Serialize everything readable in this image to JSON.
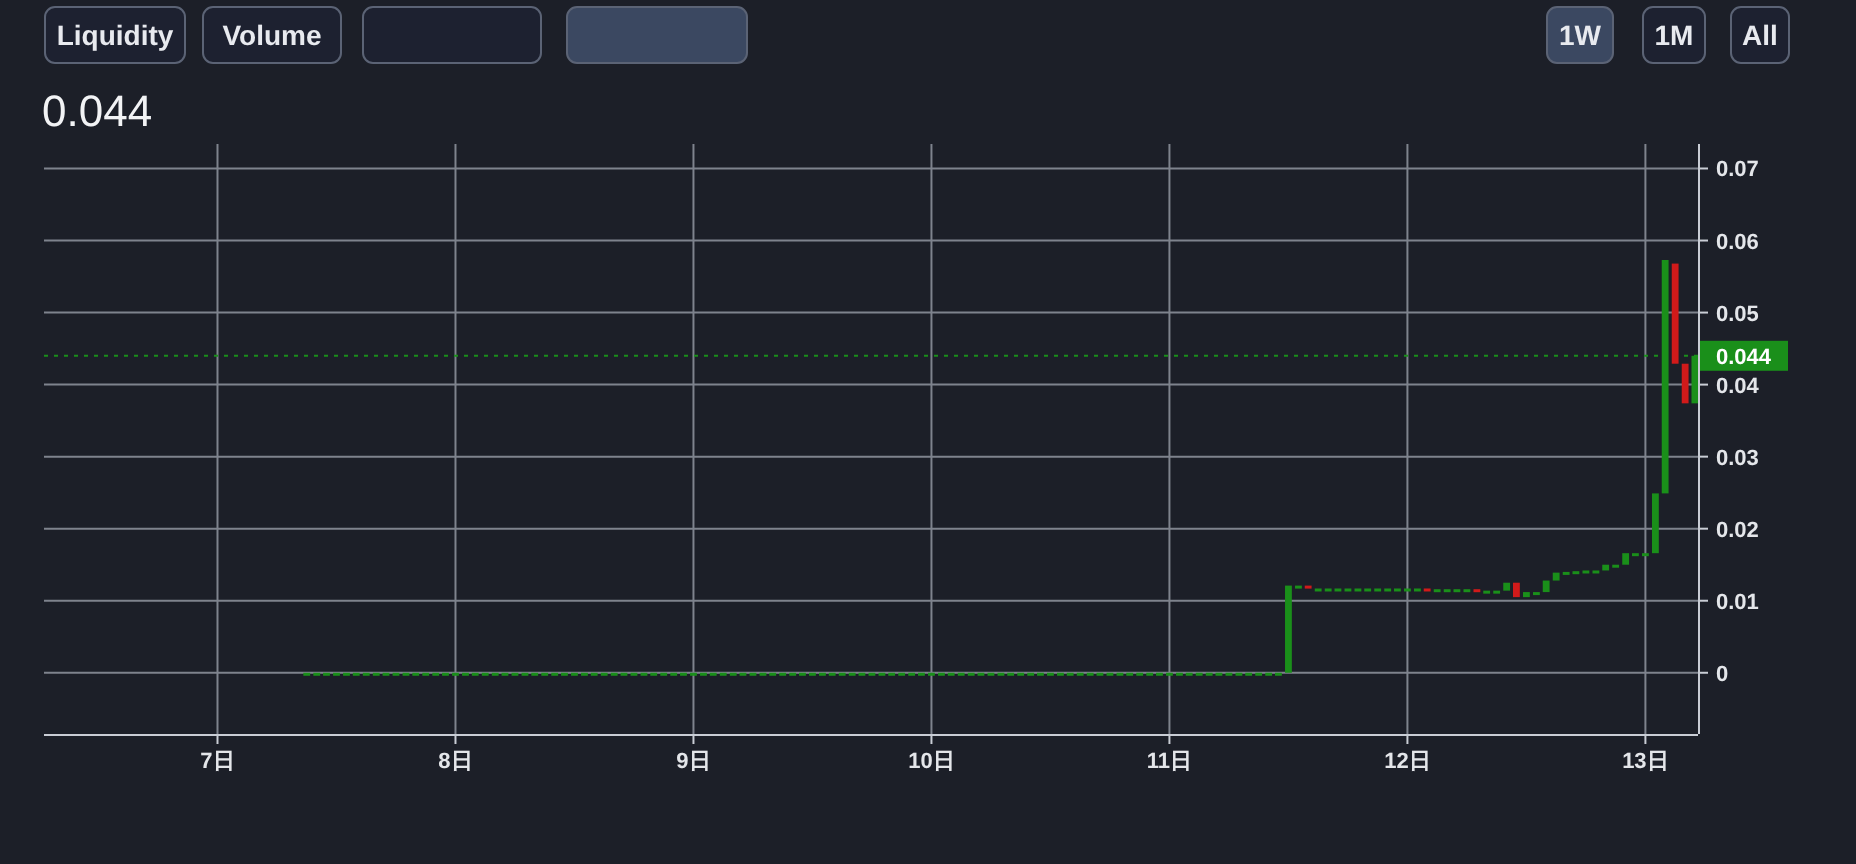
{
  "chart_data": {
    "type": "candlestick",
    "title": "0.044",
    "annotations": [
      "Liquidity",
      "Volume",
      null,
      null,
      "1W",
      "1M",
      "All"
    ],
    "x": [
      7.375,
      7.417,
      7.458,
      7.5,
      7.542,
      7.583,
      7.625,
      7.667,
      7.708,
      7.75,
      7.792,
      7.833,
      7.875,
      7.917,
      7.958,
      8,
      8.042,
      8.083,
      8.125,
      8.167,
      8.208,
      8.25,
      8.292,
      8.333,
      8.375,
      8.417,
      8.458,
      8.5,
      8.542,
      8.583,
      8.625,
      8.667,
      8.708,
      8.75,
      8.792,
      8.833,
      8.875,
      8.917,
      8.958,
      9,
      9.042,
      9.083,
      9.125,
      9.167,
      9.208,
      9.25,
      9.292,
      9.333,
      9.375,
      9.417,
      9.458,
      9.5,
      9.542,
      9.583,
      9.625,
      9.667,
      9.708,
      9.75,
      9.792,
      9.833,
      9.875,
      9.917,
      9.958,
      10,
      10.042,
      10.083,
      10.125,
      10.167,
      10.208,
      10.25,
      10.292,
      10.333,
      10.375,
      10.417,
      10.458,
      10.5,
      10.542,
      10.583,
      10.625,
      10.667,
      10.708,
      10.75,
      10.792,
      10.833,
      10.875,
      10.917,
      10.958,
      11,
      11.042,
      11.083,
      11.125,
      11.167,
      11.208,
      11.25,
      11.292,
      11.333,
      11.375,
      11.417,
      11.458,
      11.5,
      11.542,
      11.583,
      11.625,
      11.667,
      11.708,
      11.75,
      11.792,
      11.833,
      11.875,
      11.917,
      11.958,
      12,
      12.042,
      12.083,
      12.125,
      12.167,
      12.208,
      12.25,
      12.292,
      12.333,
      12.375,
      12.417,
      12.458,
      12.5,
      12.542,
      12.583,
      12.625,
      12.667,
      12.708,
      12.75,
      12.792,
      12.833,
      12.875,
      12.917,
      12.958,
      13,
      13.042,
      13.083,
      13.125,
      13.167,
      13.208
    ],
    "ohlc": [
      [
        0,
        0,
        0,
        0
      ],
      [
        0,
        0,
        0,
        0
      ],
      [
        0,
        0,
        0,
        0
      ],
      [
        0,
        0,
        0,
        0
      ],
      [
        0,
        0,
        0,
        0
      ],
      [
        0,
        0,
        0,
        0
      ],
      [
        0,
        0,
        0,
        0
      ],
      [
        0,
        0,
        0,
        0
      ],
      [
        0,
        0,
        0,
        0
      ],
      [
        0,
        0,
        0,
        0
      ],
      [
        0,
        0,
        0,
        0
      ],
      [
        0,
        0,
        0,
        0
      ],
      [
        0,
        0,
        0,
        0
      ],
      [
        0,
        0,
        0,
        0
      ],
      [
        0,
        0,
        0,
        0
      ],
      [
        0,
        0,
        0,
        0
      ],
      [
        0,
        0,
        0,
        0
      ],
      [
        0,
        0,
        0,
        0
      ],
      [
        0,
        0,
        0,
        0
      ],
      [
        0,
        0,
        0,
        0
      ],
      [
        0,
        0,
        0,
        0
      ],
      [
        0,
        0,
        0,
        0
      ],
      [
        0,
        0,
        0,
        0
      ],
      [
        0,
        0,
        0,
        0
      ],
      [
        0,
        0,
        0,
        0
      ],
      [
        0,
        0,
        0,
        0
      ],
      [
        0,
        0,
        0,
        0
      ],
      [
        0,
        0,
        0,
        0
      ],
      [
        0,
        0,
        0,
        0
      ],
      [
        0,
        0,
        0,
        0
      ],
      [
        0,
        0,
        0,
        0
      ],
      [
        0,
        0,
        0,
        0
      ],
      [
        0,
        0,
        0,
        0
      ],
      [
        0,
        0,
        0,
        0
      ],
      [
        0,
        0,
        0,
        0
      ],
      [
        0,
        0,
        0,
        0
      ],
      [
        0,
        0,
        0,
        0
      ],
      [
        0,
        0,
        0,
        0
      ],
      [
        0,
        0,
        0,
        0
      ],
      [
        0,
        0,
        0,
        0
      ],
      [
        0,
        0,
        0,
        0
      ],
      [
        0,
        0,
        0,
        0
      ],
      [
        0,
        0,
        0,
        0
      ],
      [
        0,
        0,
        0,
        0
      ],
      [
        0,
        0,
        0,
        0
      ],
      [
        0,
        0,
        0,
        0
      ],
      [
        0,
        0,
        0,
        0
      ],
      [
        0,
        0,
        0,
        0
      ],
      [
        0,
        0,
        0,
        0
      ],
      [
        0,
        0,
        0,
        0
      ],
      [
        0,
        0,
        0,
        0
      ],
      [
        0,
        0,
        0,
        0
      ],
      [
        0,
        0,
        0,
        0
      ],
      [
        0,
        0,
        0,
        0
      ],
      [
        0,
        0,
        0,
        0
      ],
      [
        0,
        0,
        0,
        0
      ],
      [
        0,
        0,
        0,
        0
      ],
      [
        0,
        0,
        0,
        0
      ],
      [
        0,
        0,
        0,
        0
      ],
      [
        0,
        0,
        0,
        0
      ],
      [
        0,
        0,
        0,
        0
      ],
      [
        0,
        0,
        0,
        0
      ],
      [
        0,
        0,
        0,
        0
      ],
      [
        0,
        0,
        0,
        0
      ],
      [
        0,
        0,
        0,
        0
      ],
      [
        0,
        0,
        0,
        0
      ],
      [
        0,
        0,
        0,
        0
      ],
      [
        0,
        0,
        0,
        0
      ],
      [
        0,
        0,
        0,
        0
      ],
      [
        0,
        0,
        0,
        0
      ],
      [
        0,
        0,
        0,
        0
      ],
      [
        0,
        0,
        0,
        0
      ],
      [
        0,
        0,
        0,
        0
      ],
      [
        0,
        0,
        0,
        0
      ],
      [
        0,
        0,
        0,
        0
      ],
      [
        0,
        0,
        0,
        0
      ],
      [
        0,
        0,
        0,
        0
      ],
      [
        0,
        0,
        0,
        0
      ],
      [
        0,
        0,
        0,
        0
      ],
      [
        0,
        0,
        0,
        0
      ],
      [
        0,
        0,
        0,
        0
      ],
      [
        0,
        0,
        0,
        0
      ],
      [
        0,
        0,
        0,
        0
      ],
      [
        0,
        0,
        0,
        0
      ],
      [
        0,
        0,
        0,
        0
      ],
      [
        0,
        0,
        0,
        0
      ],
      [
        0,
        0,
        0,
        0
      ],
      [
        0,
        0,
        0,
        0
      ],
      [
        0,
        0,
        0,
        0
      ],
      [
        0,
        0,
        0,
        0
      ],
      [
        0,
        0,
        0,
        0
      ],
      [
        0,
        0,
        0,
        0
      ],
      [
        0,
        0,
        0,
        0
      ],
      [
        0,
        0,
        0,
        0
      ],
      [
        0,
        0,
        0,
        0
      ],
      [
        0,
        0,
        0,
        0
      ],
      [
        0,
        0,
        0,
        0
      ],
      [
        0,
        0,
        0,
        0
      ],
      [
        0,
        0,
        0,
        0
      ],
      [
        0,
        0.0121,
        0,
        0.0121
      ],
      [
        0.0121,
        0.0121,
        0.0121,
        0.0121
      ],
      [
        0.0121,
        0.0121,
        0.0117,
        0.0117
      ],
      [
        0.0117,
        0.0117,
        0.0117,
        0.0117
      ],
      [
        0.0117,
        0.0117,
        0.0117,
        0.0117
      ],
      [
        0.0117,
        0.0117,
        0.0117,
        0.0117
      ],
      [
        0.0117,
        0.0117,
        0.0117,
        0.0117
      ],
      [
        0.0117,
        0.0117,
        0.0117,
        0.0117
      ],
      [
        0.0117,
        0.0117,
        0.0117,
        0.0117
      ],
      [
        0.0117,
        0.0117,
        0.0117,
        0.0117
      ],
      [
        0.0117,
        0.0117,
        0.0117,
        0.0117
      ],
      [
        0.0117,
        0.0117,
        0.0117,
        0.0117
      ],
      [
        0.0117,
        0.0117,
        0.0117,
        0.0117
      ],
      [
        0.0117,
        0.0117,
        0.0117,
        0.0117
      ],
      [
        0.0117,
        0.0117,
        0.0116,
        0.0116
      ],
      [
        0.0116,
        0.0116,
        0.0116,
        0.0116
      ],
      [
        0.0116,
        0.0116,
        0.0116,
        0.0116
      ],
      [
        0.0116,
        0.0116,
        0.0116,
        0.0116
      ],
      [
        0.0116,
        0.0116,
        0.0116,
        0.0116
      ],
      [
        0.0116,
        0.0116,
        0.0114,
        0.0114
      ],
      [
        0.0114,
        0.0114,
        0.0114,
        0.0114
      ],
      [
        0.0114,
        0.0114,
        0.0114,
        0.0114
      ],
      [
        0.0114,
        0.0125,
        0.0114,
        0.0125
      ],
      [
        0.0125,
        0.0125,
        0.0105,
        0.0105
      ],
      [
        0.0105,
        0.0112,
        0.0105,
        0.0112
      ],
      [
        0.0112,
        0.0112,
        0.0112,
        0.0112
      ],
      [
        0.0112,
        0.0128,
        0.0112,
        0.0128
      ],
      [
        0.0128,
        0.0139,
        0.0128,
        0.0139
      ],
      [
        0.014,
        0.014,
        0.014,
        0.014
      ],
      [
        0.0141,
        0.0141,
        0.0141,
        0.0141
      ],
      [
        0.0142,
        0.0142,
        0.0142,
        0.0142
      ],
      [
        0.0142,
        0.0142,
        0.0142,
        0.0142
      ],
      [
        0.0142,
        0.015,
        0.0142,
        0.015
      ],
      [
        0.015,
        0.015,
        0.015,
        0.015
      ],
      [
        0.015,
        0.0166,
        0.015,
        0.0166
      ],
      [
        0.0166,
        0.0166,
        0.0166,
        0.0166
      ],
      [
        0.0166,
        0.0166,
        0.0166,
        0.0166
      ],
      [
        0.0166,
        0.0249,
        0.0166,
        0.0249
      ],
      [
        0.0249,
        0.0573,
        0.0249,
        0.0573
      ],
      [
        0.0568,
        0.0568,
        0.0429,
        0.0429
      ],
      [
        0.0429,
        0.0429,
        0.0374,
        0.0374
      ],
      [
        0.0374,
        0.044,
        0.0374,
        0.044
      ]
    ],
    "colors": [
      "#1a8f1a",
      "#1a8f1a",
      "#1a8f1a",
      "#1a8f1a",
      "#1a8f1a",
      "#1a8f1a",
      "#1a8f1a",
      "#1a8f1a",
      "#1a8f1a",
      "#1a8f1a",
      "#1a8f1a",
      "#1a8f1a",
      "#1a8f1a",
      "#1a8f1a",
      "#1a8f1a",
      "#1a8f1a",
      "#1a8f1a",
      "#1a8f1a",
      "#1a8f1a",
      "#1a8f1a",
      "#1a8f1a",
      "#1a8f1a",
      "#1a8f1a",
      "#1a8f1a",
      "#1a8f1a",
      "#1a8f1a",
      "#1a8f1a",
      "#1a8f1a",
      "#1a8f1a",
      "#1a8f1a",
      "#1a8f1a",
      "#1a8f1a",
      "#1a8f1a",
      "#1a8f1a",
      "#1a8f1a",
      "#1a8f1a",
      "#1a8f1a",
      "#1a8f1a",
      "#1a8f1a",
      "#1a8f1a",
      "#1a8f1a",
      "#1a8f1a",
      "#1a8f1a",
      "#1a8f1a",
      "#1a8f1a",
      "#1a8f1a",
      "#1a8f1a",
      "#1a8f1a",
      "#1a8f1a",
      "#1a8f1a",
      "#1a8f1a",
      "#1a8f1a",
      "#1a8f1a",
      "#1a8f1a",
      "#1a8f1a",
      "#1a8f1a",
      "#1a8f1a",
      "#1a8f1a",
      "#1a8f1a",
      "#1a8f1a",
      "#1a8f1a",
      "#1a8f1a",
      "#1a8f1a",
      "#1a8f1a",
      "#1a8f1a",
      "#1a8f1a",
      "#1a8f1a",
      "#1a8f1a",
      "#1a8f1a",
      "#1a8f1a",
      "#1a8f1a",
      "#1a8f1a",
      "#1a8f1a",
      "#1a8f1a",
      "#1a8f1a",
      "#1a8f1a",
      "#1a8f1a",
      "#1a8f1a",
      "#1a8f1a",
      "#1a8f1a",
      "#1a8f1a",
      "#1a8f1a",
      "#1a8f1a",
      "#1a8f1a",
      "#1a8f1a",
      "#1a8f1a",
      "#1a8f1a",
      "#1a8f1a",
      "#1a8f1a",
      "#1a8f1a",
      "#1a8f1a",
      "#1a8f1a",
      "#1a8f1a",
      "#1a8f1a",
      "#1a8f1a",
      "#1a8f1a",
      "#1a8f1a",
      "#1a8f1a",
      "#1a8f1a",
      "#1a8f1a",
      "#1a8f1a",
      "#d11a1a",
      "#1a8f1a",
      "#1a8f1a",
      "#1a8f1a",
      "#1a8f1a",
      "#1a8f1a",
      "#1a8f1a",
      "#1a8f1a",
      "#1a8f1a",
      "#1a8f1a",
      "#1a8f1a",
      "#1a8f1a",
      "#d11a1a",
      "#1a8f1a",
      "#1a8f1a",
      "#1a8f1a",
      "#1a8f1a",
      "#d11a1a",
      "#1a8f1a",
      "#1a8f1a",
      "#1a8f1a",
      "#d11a1a",
      "#1a8f1a",
      "#1a8f1a",
      "#1a8f1a",
      "#1a8f1a",
      "#1a8f1a",
      "#1a8f1a",
      "#1a8f1a",
      "#1a8f1a",
      "#1a8f1a",
      "#1a8f1a",
      "#1a8f1a",
      "#1a8f1a",
      "#1a8f1a",
      "#1a8f1a",
      "#1a8f1a",
      "#d11a1a",
      "#d11a1a",
      "#1a8f1a"
    ],
    "xlim": [
      6.271,
      13.221
    ],
    "xticks": [
      {
        "value": 7,
        "label": "7日"
      },
      {
        "value": 8,
        "label": "8日"
      },
      {
        "value": 9,
        "label": "9日"
      },
      {
        "value": 10,
        "label": "10日"
      },
      {
        "value": 11,
        "label": "11日"
      },
      {
        "value": 12,
        "label": "12日"
      },
      {
        "value": 13,
        "label": "13日"
      }
    ],
    "ylim": [
      -0.0085,
      0.0734
    ],
    "yticks": [
      0,
      0.01,
      0.02,
      0.03,
      0.04,
      0.05,
      0.06,
      0.07
    ],
    "grid": true,
    "ref_lines": [
      {
        "axis": "y",
        "value": 0.044,
        "label": "0.044",
        "color": "#1a8f1a",
        "line_style": "dotted"
      }
    ]
  }
}
